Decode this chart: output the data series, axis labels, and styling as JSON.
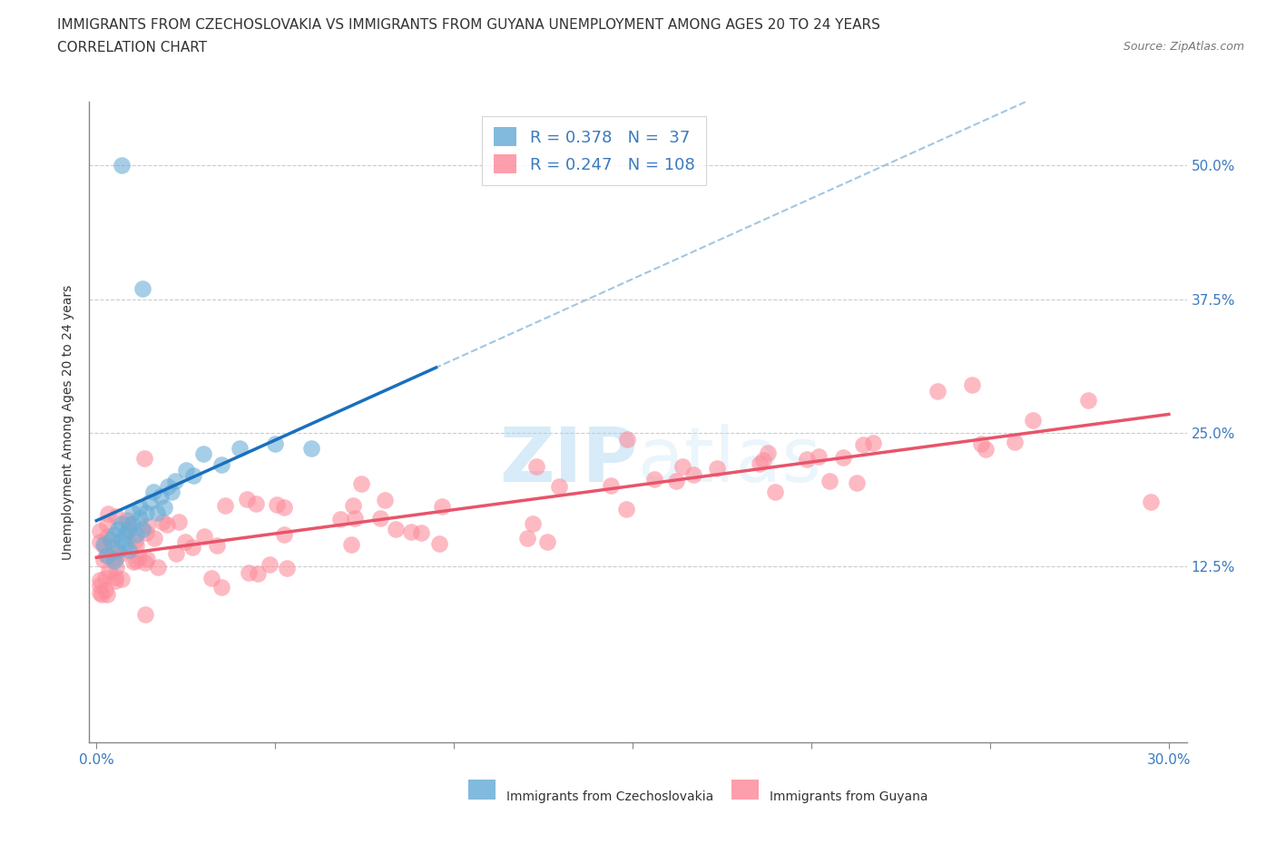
{
  "title_line1": "IMMIGRANTS FROM CZECHOSLOVAKIA VS IMMIGRANTS FROM GUYANA UNEMPLOYMENT AMONG AGES 20 TO 24 YEARS",
  "title_line2": "CORRELATION CHART",
  "source_text": "Source: ZipAtlas.com",
  "ylabel": "Unemployment Among Ages 20 to 24 years",
  "ytick_labels": [
    "12.5%",
    "25.0%",
    "37.5%",
    "50.0%"
  ],
  "ytick_vals": [
    0.125,
    0.25,
    0.375,
    0.5
  ],
  "xtick_vals": [
    0.0,
    0.05,
    0.1,
    0.15,
    0.2,
    0.25,
    0.3
  ],
  "xlim": [
    -0.002,
    0.305
  ],
  "ylim": [
    -0.04,
    0.56
  ],
  "legend_r1": "R = 0.378",
  "legend_n1": "N =  37",
  "legend_r2": "R = 0.247",
  "legend_n2": "N = 108",
  "color_czech": "#6baed6",
  "color_guyana": "#fc8d9c",
  "trendline_czech_color": "#1a6fbd",
  "trendline_guyana_color": "#e8546a",
  "trendline_czech_dashed_color": "#7bafd4",
  "watermark": "ZIPatlas",
  "title_fontsize": 11,
  "axis_label_fontsize": 10,
  "tick_fontsize": 11,
  "legend_label_czech": "Immigrants from Czechoslovakia",
  "legend_label_guyana": "Immigrants from Guyana"
}
